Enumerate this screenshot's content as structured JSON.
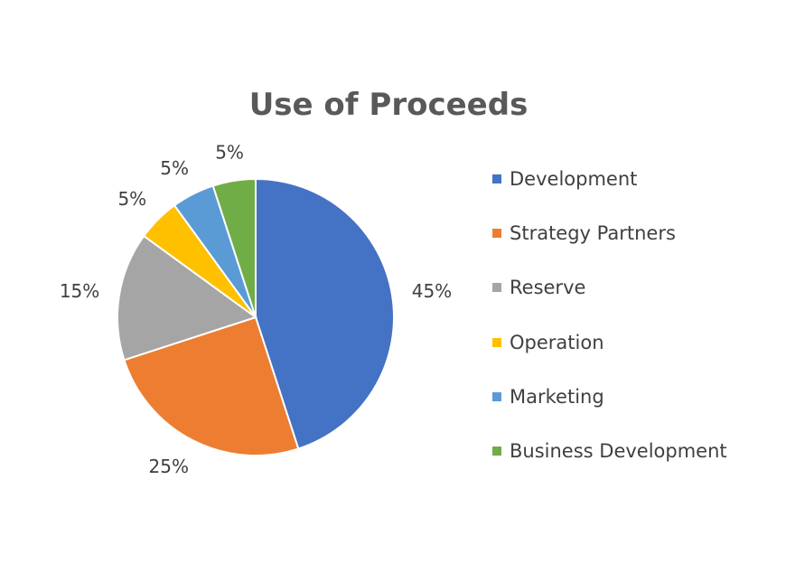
{
  "chart_data": {
    "type": "pie",
    "title": "Use of Proceeds",
    "categories": [
      "Development",
      "Strategy Partners",
      "Reserve",
      "Operation",
      "Marketing",
      "Business Development"
    ],
    "values": [
      45,
      25,
      15,
      5,
      5,
      5
    ],
    "data_labels": [
      "45%",
      "25%",
      "15%",
      "5%",
      "5%",
      "5%"
    ],
    "colors": [
      "#4472C4",
      "#ED7D31",
      "#A5A5A5",
      "#FFC000",
      "#5B9BD5",
      "#70AD47"
    ],
    "legend_position": "right"
  }
}
